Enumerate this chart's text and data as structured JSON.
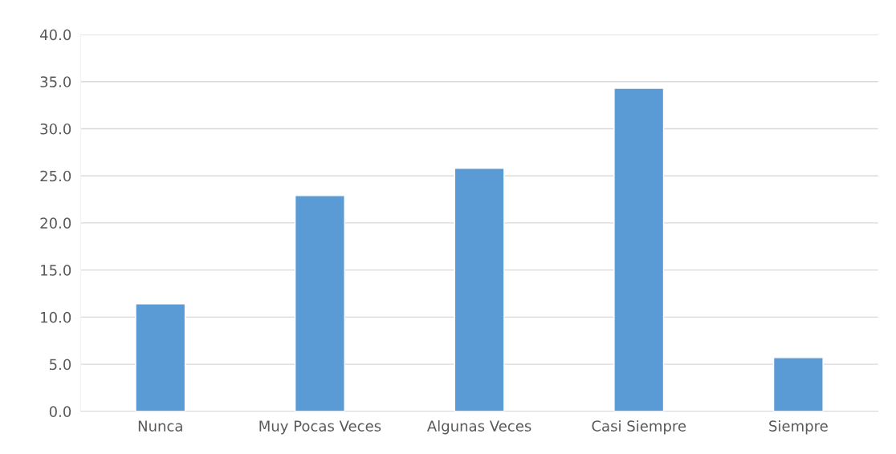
{
  "chart_data": {
    "type": "bar",
    "categories": [
      "Nunca",
      "Muy Pocas Veces",
      "Algunas Veces",
      "Casi Siempre",
      "Siempre"
    ],
    "values": [
      11.4,
      22.9,
      25.8,
      34.3,
      5.7
    ],
    "color": "#5b9bd5",
    "ylim": [
      0,
      40
    ],
    "yticks": [
      {
        "value": 0,
        "label": "0.0"
      },
      {
        "value": 5,
        "label": "5.0"
      },
      {
        "value": 10,
        "label": "10.0"
      },
      {
        "value": 15,
        "label": "15.0"
      },
      {
        "value": 20,
        "label": "20.0"
      },
      {
        "value": 25,
        "label": "25.0"
      },
      {
        "value": 30,
        "label": "30.0"
      },
      {
        "value": 35,
        "label": "35.0"
      },
      {
        "value": 40,
        "label": "40.0"
      }
    ],
    "grid": "y"
  }
}
